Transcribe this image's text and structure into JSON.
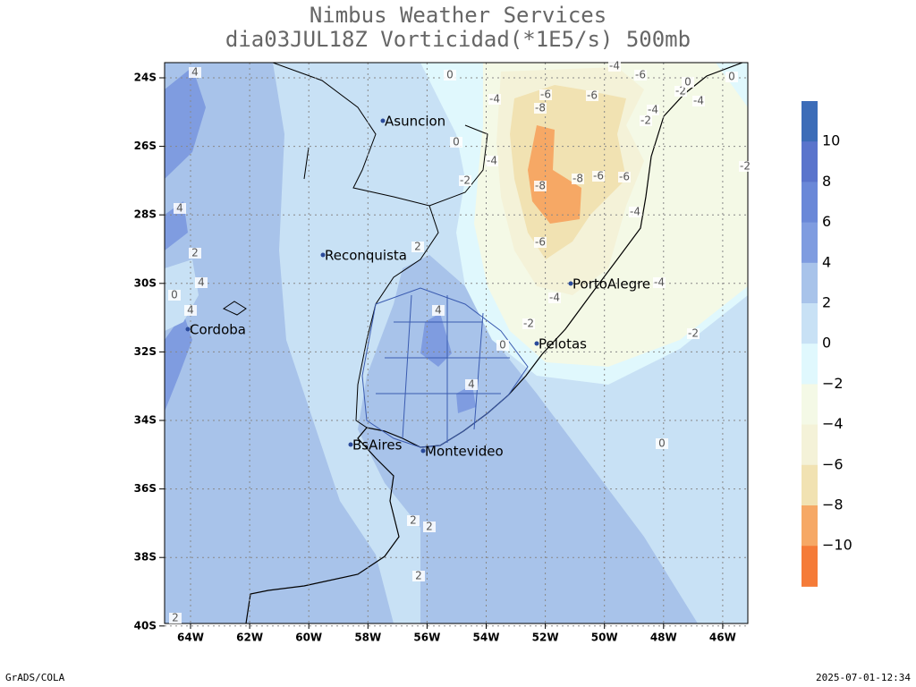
{
  "title": {
    "line1": "Nimbus Weather Services",
    "line2": "dia03JUL18Z Vorticidad(*1E5/s) 500mb"
  },
  "map": {
    "lat_labels": [
      "24S",
      "26S",
      "28S",
      "30S",
      "32S",
      "34S",
      "36S",
      "38S",
      "40S"
    ],
    "lon_labels": [
      "64W",
      "62W",
      "60W",
      "58W",
      "56W",
      "54W",
      "52W",
      "50W",
      "48W",
      "46W"
    ],
    "cities": [
      "Asuncion",
      "Reconquista",
      "Cordoba",
      "BsAires",
      "Montevideo",
      "Pelotas",
      "PortoAlegre"
    ],
    "contour_labels": [
      "0",
      "-4",
      "-6",
      "-4",
      "-6",
      "-8",
      "-6",
      "-4",
      "-2",
      "-2",
      "0",
      "-4",
      "0",
      "0",
      "-4",
      "-2",
      "-8",
      "-8",
      "-6",
      "-6",
      "-4",
      "-6",
      "2",
      "4",
      "-4",
      "-4",
      "-2",
      "0",
      "-2",
      "4",
      "0",
      "2",
      "2",
      "2",
      "4",
      "4",
      "2",
      "4",
      "0",
      "4",
      "2",
      "-2"
    ]
  },
  "colorbar": {
    "colors": [
      "#3c6cb8",
      "#5a74cc",
      "#6a88d8",
      "#7f9ce0",
      "#a8c3ea",
      "#c8e1f5",
      "#e0f8fd",
      "#f4f9e6",
      "#f4f2d8",
      "#f1e2b2",
      "#f6a865",
      "#f57b38"
    ],
    "labels": [
      "10",
      "8",
      "6",
      "4",
      "2",
      "0",
      "−2",
      "−4",
      "−6",
      "−8",
      "−10"
    ]
  },
  "footer": {
    "left": "GrADS/COLA",
    "right": "2025-07-01-12:34"
  }
}
